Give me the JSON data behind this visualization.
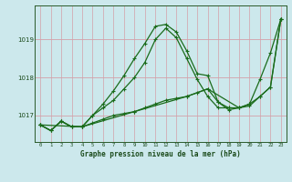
{
  "title": "Graphe pression niveau de la mer (hPa)",
  "background_color": "#cce8ec",
  "grid_color_v": "#d4a0a8",
  "grid_color_h": "#d4a0a8",
  "line_color": "#1a6b1a",
  "xlim": [
    -0.5,
    23.5
  ],
  "ylim": [
    1016.3,
    1019.9
  ],
  "yticks": [
    1017.0,
    1018.0,
    1019.0
  ],
  "ytick_labels": [
    "1017",
    "1018",
    "1019"
  ],
  "xticks": [
    0,
    1,
    2,
    3,
    4,
    5,
    6,
    7,
    8,
    9,
    10,
    11,
    12,
    13,
    14,
    15,
    16,
    17,
    18,
    19,
    20,
    21,
    22,
    23
  ],
  "lines": [
    {
      "x": [
        0,
        1,
        2,
        3,
        4,
        5,
        6,
        7,
        8,
        9,
        10,
        11,
        12,
        13,
        14,
        15,
        16,
        17,
        18,
        19,
        20,
        21,
        22,
        23
      ],
      "y": [
        1016.75,
        1016.6,
        1016.85,
        1016.7,
        1016.7,
        1016.8,
        1016.9,
        1017.0,
        1017.05,
        1017.1,
        1017.2,
        1017.3,
        1017.4,
        1017.45,
        1017.5,
        1017.6,
        1017.7,
        1017.35,
        1017.15,
        1017.2,
        1017.3,
        1017.5,
        1017.75,
        1019.55
      ]
    },
    {
      "x": [
        0,
        1,
        2,
        3,
        4,
        5,
        6,
        7,
        8,
        9,
        10,
        11,
        12,
        13,
        14,
        15,
        16,
        17,
        18,
        19,
        20,
        21,
        22,
        23
      ],
      "y": [
        1016.75,
        1016.6,
        1016.85,
        1016.7,
        1016.7,
        1017.0,
        1017.3,
        1017.65,
        1018.05,
        1018.5,
        1018.9,
        1019.35,
        1019.4,
        1019.2,
        1018.7,
        1018.1,
        1018.05,
        1017.35,
        1017.2,
        1017.2,
        1017.3,
        1017.95,
        1018.65,
        1019.55
      ]
    },
    {
      "x": [
        0,
        1,
        2,
        3,
        4,
        5,
        6,
        7,
        8,
        9,
        10,
        11,
        12,
        13,
        14,
        15,
        16,
        17,
        18
      ],
      "y": [
        1016.75,
        1016.6,
        1016.85,
        1016.7,
        1016.7,
        1017.0,
        1017.2,
        1017.4,
        1017.7,
        1018.0,
        1018.4,
        1019.0,
        1019.3,
        1019.05,
        1018.5,
        1017.95,
        1017.5,
        1017.2,
        1017.2
      ]
    },
    {
      "x": [
        0,
        4,
        9,
        14,
        16,
        19,
        20,
        21,
        22,
        23
      ],
      "y": [
        1016.75,
        1016.7,
        1017.1,
        1017.5,
        1017.7,
        1017.2,
        1017.25,
        1017.5,
        1017.75,
        1019.55
      ]
    }
  ]
}
